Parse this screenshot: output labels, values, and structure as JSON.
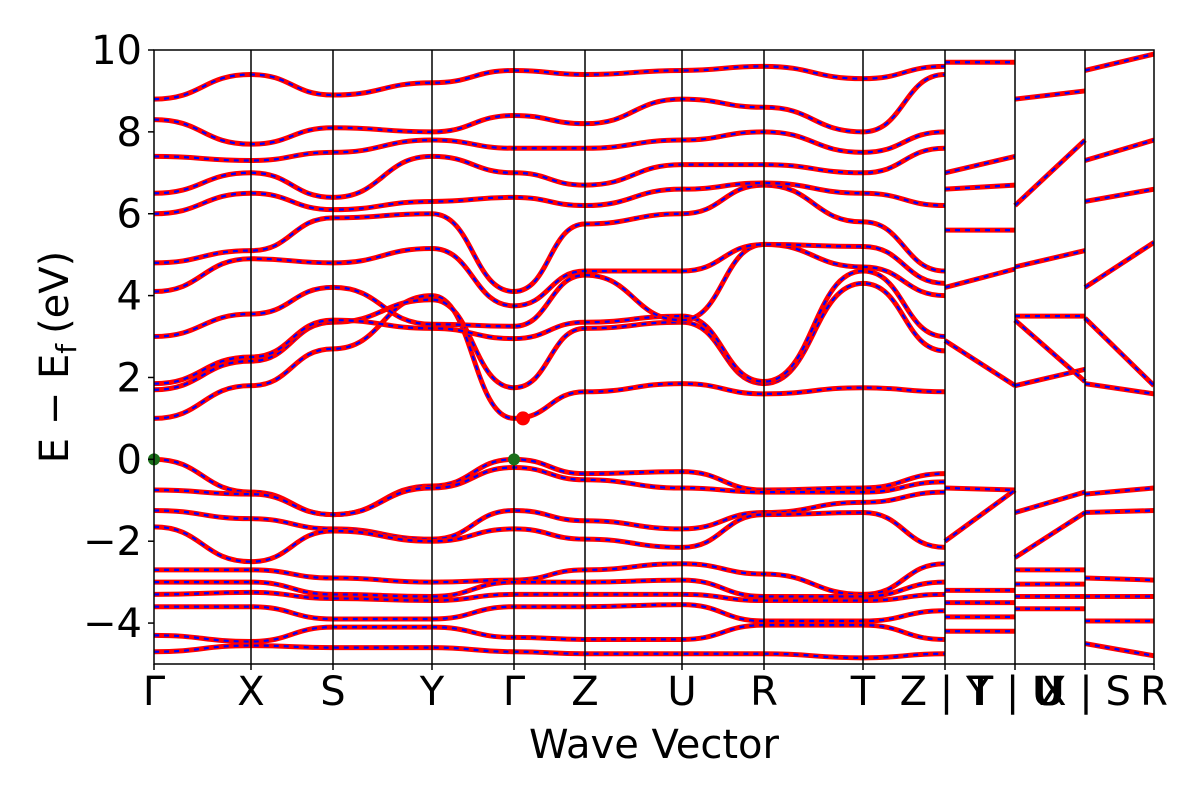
{
  "chart_data": {
    "type": "line",
    "title": "",
    "xlabel": "Wave Vector",
    "ylabel": "E − E",
    "ylabel_sub": "f",
    "ylabel_unit": "(eV)",
    "ylim": [
      -5,
      10
    ],
    "yticks": [
      -4,
      -2,
      0,
      2,
      4,
      6,
      8,
      10
    ],
    "ytick_labels": [
      "−4",
      "−2",
      "0",
      "2",
      "4",
      "6",
      "8",
      "10"
    ],
    "kpath": [
      {
        "label": "Γ",
        "x": 0.0
      },
      {
        "label": "X",
        "x": 0.097
      },
      {
        "label": "S",
        "x": 0.179
      },
      {
        "label": "Y",
        "x": 0.278
      },
      {
        "label": "Γ",
        "x": 0.36
      },
      {
        "label": "Z",
        "x": 0.431
      },
      {
        "label": "U",
        "x": 0.528
      },
      {
        "label": "R",
        "x": 0.61
      },
      {
        "label": "T",
        "x": 0.709
      },
      {
        "label": "Z | Y",
        "x": 0.791
      },
      {
        "label": "T | U",
        "x": 0.861
      },
      {
        "label": "X | S",
        "x": 0.931
      },
      {
        "label": "R",
        "x": 1.0
      }
    ],
    "xlim": [
      0,
      1
    ],
    "overlay_tick_labels": [
      {
        "label": "T",
        "x": 0.826
      },
      {
        "label": "U",
        "x": 0.896
      }
    ],
    "segment_breaks": [
      0.791,
      0.861,
      0.931
    ],
    "series": [],
    "band_colors": {
      "solid": "#ff0000",
      "dashed": "#0000ff"
    },
    "markers": [
      {
        "kind": "VBM",
        "x": 0.0,
        "y": 0.0,
        "color": "#1a6e1a"
      },
      {
        "kind": "VBM",
        "x": 0.36,
        "y": 0.0,
        "color": "#1a6e1a"
      },
      {
        "kind": "CBM",
        "x": 0.369,
        "y": 1.0,
        "color": "#ff0000"
      }
    ],
    "bands": [
      {
        "x": [
          0,
          0.097,
          0.179,
          0.278,
          0.36,
          0.431,
          0.528,
          0.61,
          0.709,
          0.791
        ],
        "y": [
          0.0,
          -0.8,
          -1.35,
          -0.65,
          0.0,
          -0.35,
          -0.3,
          -0.75,
          -0.7,
          -0.35
        ]
      },
      {
        "x": [
          0,
          0.097,
          0.179,
          0.278,
          0.36,
          0.431,
          0.528,
          0.61,
          0.709,
          0.791
        ],
        "y": [
          -0.75,
          -0.85,
          -1.35,
          -0.7,
          -0.2,
          -0.5,
          -0.7,
          -0.8,
          -0.8,
          -0.55
        ]
      },
      {
        "x": [
          0,
          0.097,
          0.179,
          0.278,
          0.36,
          0.431,
          0.528,
          0.61,
          0.709,
          0.791
        ],
        "y": [
          -1.25,
          -1.45,
          -1.7,
          -1.95,
          -1.25,
          -1.5,
          -1.7,
          -1.3,
          -1.05,
          -0.8
        ]
      },
      {
        "x": [
          0,
          0.097,
          0.179,
          0.278,
          0.36,
          0.431,
          0.528,
          0.61,
          0.709,
          0.791
        ],
        "y": [
          -1.65,
          -2.5,
          -1.75,
          -2.0,
          -1.7,
          -1.95,
          -2.15,
          -1.35,
          -1.3,
          -2.15
        ]
      },
      {
        "x": [
          0,
          0.097,
          0.179,
          0.278,
          0.36,
          0.431,
          0.528,
          0.61,
          0.709,
          0.791
        ],
        "y": [
          -2.7,
          -2.7,
          -2.9,
          -3.0,
          -2.95,
          -2.7,
          -2.55,
          -2.8,
          -3.3,
          -2.55
        ]
      },
      {
        "x": [
          0,
          0.097,
          0.179,
          0.278,
          0.36,
          0.431,
          0.528,
          0.61,
          0.709,
          0.791
        ],
        "y": [
          -3.0,
          -3.0,
          -3.3,
          -3.35,
          -3.0,
          -3.0,
          -2.95,
          -3.35,
          -3.35,
          -3.0
        ]
      },
      {
        "x": [
          0,
          0.097,
          0.179,
          0.278,
          0.36,
          0.431,
          0.528,
          0.61,
          0.709,
          0.791
        ],
        "y": [
          -3.3,
          -3.25,
          -3.4,
          -3.45,
          -3.3,
          -3.3,
          -3.3,
          -3.45,
          -3.45,
          -3.3
        ]
      },
      {
        "x": [
          0,
          0.097,
          0.179,
          0.278,
          0.36,
          0.431,
          0.528,
          0.61,
          0.709,
          0.791
        ],
        "y": [
          -3.6,
          -3.6,
          -3.9,
          -3.9,
          -3.6,
          -3.6,
          -3.55,
          -3.95,
          -3.95,
          -3.7
        ]
      },
      {
        "x": [
          0,
          0.097,
          0.179,
          0.278,
          0.36,
          0.431,
          0.528,
          0.61,
          0.709,
          0.791
        ],
        "y": [
          -4.3,
          -4.45,
          -4.1,
          -4.1,
          -4.35,
          -4.4,
          -4.4,
          -4.05,
          -4.05,
          -4.4
        ]
      },
      {
        "x": [
          0,
          0.097,
          0.179,
          0.278,
          0.36,
          0.431,
          0.528,
          0.61,
          0.709,
          0.791
        ],
        "y": [
          -4.7,
          -4.55,
          -4.6,
          -4.6,
          -4.7,
          -4.75,
          -4.75,
          -4.75,
          -4.85,
          -4.75
        ]
      },
      {
        "x": [
          0,
          0.097,
          0.179,
          0.278,
          0.36,
          0.431,
          0.528,
          0.61,
          0.709,
          0.791
        ],
        "y": [
          1.0,
          1.8,
          2.7,
          4.0,
          1.0,
          1.65,
          1.85,
          1.6,
          1.75,
          1.65
        ]
      },
      {
        "x": [
          0,
          0.097,
          0.179,
          0.278,
          0.36,
          0.431,
          0.528,
          0.61,
          0.709,
          0.791
        ],
        "y": [
          1.7,
          2.4,
          3.35,
          3.9,
          1.75,
          3.2,
          3.35,
          1.85,
          4.3,
          2.65
        ]
      },
      {
        "x": [
          0,
          0.097,
          0.179,
          0.278,
          0.36,
          0.431,
          0.528,
          0.61,
          0.709,
          0.791
        ],
        "y": [
          1.85,
          2.5,
          3.4,
          3.2,
          2.95,
          3.35,
          3.5,
          1.9,
          4.6,
          3.0
        ]
      },
      {
        "x": [
          0,
          0.097,
          0.179,
          0.278,
          0.36,
          0.431,
          0.528,
          0.61,
          0.709,
          0.791
        ],
        "y": [
          3.0,
          3.55,
          4.2,
          3.3,
          3.25,
          4.5,
          3.4,
          5.25,
          4.7,
          4.0
        ]
      },
      {
        "x": [
          0,
          0.097,
          0.179,
          0.278,
          0.36,
          0.431,
          0.528,
          0.61,
          0.709,
          0.791
        ],
        "y": [
          4.1,
          4.9,
          4.8,
          5.15,
          3.75,
          4.6,
          4.6,
          5.25,
          5.2,
          4.3
        ]
      },
      {
        "x": [
          0,
          0.097,
          0.179,
          0.278,
          0.36,
          0.431,
          0.528,
          0.61,
          0.709,
          0.791
        ],
        "y": [
          4.8,
          5.1,
          5.9,
          6.0,
          4.1,
          5.75,
          6.0,
          6.7,
          5.8,
          4.6
        ]
      },
      {
        "x": [
          0,
          0.097,
          0.179,
          0.278,
          0.36,
          0.431,
          0.528,
          0.61,
          0.709,
          0.791
        ],
        "y": [
          6.0,
          6.5,
          6.1,
          6.3,
          6.4,
          6.2,
          6.6,
          6.75,
          6.5,
          6.2
        ]
      },
      {
        "x": [
          0,
          0.097,
          0.179,
          0.278,
          0.36,
          0.431,
          0.528,
          0.61,
          0.709,
          0.791
        ],
        "y": [
          6.5,
          7.0,
          6.4,
          7.4,
          7.0,
          6.7,
          7.2,
          7.2,
          7.0,
          7.6
        ]
      },
      {
        "x": [
          0,
          0.097,
          0.179,
          0.278,
          0.36,
          0.431,
          0.528,
          0.61,
          0.709,
          0.791
        ],
        "y": [
          7.4,
          7.3,
          7.5,
          7.8,
          7.6,
          7.6,
          7.8,
          8.0,
          7.5,
          8.0
        ]
      },
      {
        "x": [
          0,
          0.097,
          0.179,
          0.278,
          0.36,
          0.431,
          0.528,
          0.61,
          0.709,
          0.791
        ],
        "y": [
          8.3,
          7.7,
          8.1,
          8.0,
          8.4,
          8.2,
          8.8,
          8.6,
          8.0,
          9.4
        ]
      },
      {
        "x": [
          0,
          0.097,
          0.179,
          0.278,
          0.36,
          0.431,
          0.528,
          0.61,
          0.709,
          0.791
        ],
        "y": [
          8.8,
          9.4,
          8.9,
          9.2,
          9.5,
          9.4,
          9.5,
          9.6,
          9.3,
          9.6
        ]
      },
      {
        "x": [
          0.791,
          0.861
        ],
        "y": [
          -0.7,
          -0.75
        ]
      },
      {
        "x": [
          0.791,
          0.861
        ],
        "y": [
          -2.0,
          -0.75
        ]
      },
      {
        "x": [
          0.791,
          0.861
        ],
        "y": [
          -3.2,
          -3.2
        ]
      },
      {
        "x": [
          0.791,
          0.861
        ],
        "y": [
          -3.5,
          -3.5
        ]
      },
      {
        "x": [
          0.791,
          0.861
        ],
        "y": [
          -3.85,
          -3.85
        ]
      },
      {
        "x": [
          0.791,
          0.861
        ],
        "y": [
          -4.2,
          -4.2
        ]
      },
      {
        "x": [
          0.791,
          0.861
        ],
        "y": [
          2.9,
          1.8
        ]
      },
      {
        "x": [
          0.791,
          0.861
        ],
        "y": [
          4.2,
          4.65
        ]
      },
      {
        "x": [
          0.791,
          0.861
        ],
        "y": [
          5.6,
          5.6
        ]
      },
      {
        "x": [
          0.791,
          0.861
        ],
        "y": [
          6.6,
          6.7
        ]
      },
      {
        "x": [
          0.791,
          0.861
        ],
        "y": [
          7.0,
          7.4
        ]
      },
      {
        "x": [
          0.791,
          0.861
        ],
        "y": [
          9.7,
          9.7
        ]
      },
      {
        "x": [
          0.861,
          0.931
        ],
        "y": [
          -1.3,
          -0.8
        ]
      },
      {
        "x": [
          0.861,
          0.931
        ],
        "y": [
          -2.4,
          -1.3
        ]
      },
      {
        "x": [
          0.861,
          0.931
        ],
        "y": [
          -2.7,
          -2.7
        ]
      },
      {
        "x": [
          0.861,
          0.931
        ],
        "y": [
          -3.05,
          -3.05
        ]
      },
      {
        "x": [
          0.861,
          0.931
        ],
        "y": [
          -3.35,
          -3.35
        ]
      },
      {
        "x": [
          0.861,
          0.931
        ],
        "y": [
          -3.65,
          -3.65
        ]
      },
      {
        "x": [
          0.861,
          0.931
        ],
        "y": [
          1.8,
          2.2
        ]
      },
      {
        "x": [
          0.861,
          0.931
        ],
        "y": [
          3.4,
          1.9
        ]
      },
      {
        "x": [
          0.861,
          0.931
        ],
        "y": [
          3.5,
          3.5
        ]
      },
      {
        "x": [
          0.861,
          0.931
        ],
        "y": [
          4.7,
          5.1
        ]
      },
      {
        "x": [
          0.861,
          0.931
        ],
        "y": [
          6.2,
          7.8
        ]
      },
      {
        "x": [
          0.861,
          0.931
        ],
        "y": [
          8.8,
          9.0
        ]
      },
      {
        "x": [
          0.931,
          1.0
        ],
        "y": [
          -0.85,
          -0.7
        ]
      },
      {
        "x": [
          0.931,
          1.0
        ],
        "y": [
          -1.3,
          -1.25
        ]
      },
      {
        "x": [
          0.931,
          1.0
        ],
        "y": [
          -2.9,
          -2.95
        ]
      },
      {
        "x": [
          0.931,
          1.0
        ],
        "y": [
          -3.35,
          -3.35
        ]
      },
      {
        "x": [
          0.931,
          1.0
        ],
        "y": [
          -3.95,
          -3.95
        ]
      },
      {
        "x": [
          0.931,
          1.0
        ],
        "y": [
          -4.5,
          -4.8
        ]
      },
      {
        "x": [
          0.931,
          1.0
        ],
        "y": [
          1.85,
          1.6
        ]
      },
      {
        "x": [
          0.931,
          1.0
        ],
        "y": [
          3.45,
          1.8
        ]
      },
      {
        "x": [
          0.931,
          1.0
        ],
        "y": [
          4.2,
          5.3
        ]
      },
      {
        "x": [
          0.931,
          1.0
        ],
        "y": [
          6.3,
          6.6
        ]
      },
      {
        "x": [
          0.931,
          1.0
        ],
        "y": [
          7.3,
          7.8
        ]
      },
      {
        "x": [
          0.931,
          1.0
        ],
        "y": [
          9.5,
          9.9
        ]
      }
    ]
  }
}
